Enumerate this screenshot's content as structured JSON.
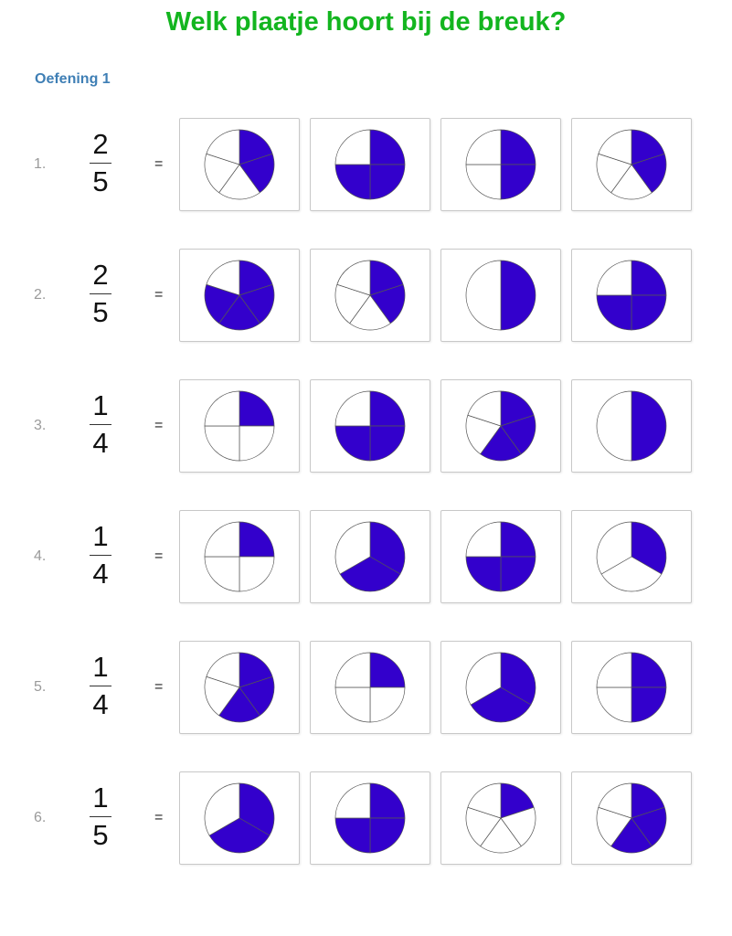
{
  "title": "Welk plaatje hoort bij de breuk?",
  "section": "Oefening 1",
  "equals_sign": "=",
  "colors": {
    "fill": "#3300cc",
    "title": "#13b51f",
    "section": "#3f7fb5"
  },
  "exercises": [
    {
      "label": "1.",
      "numerator": "2",
      "denominator": "5",
      "options": [
        {
          "parts": 5,
          "filled": 2
        },
        {
          "parts": 4,
          "filled": 3
        },
        {
          "parts": 4,
          "filled": 2
        },
        {
          "parts": 5,
          "filled": 2
        }
      ]
    },
    {
      "label": "2.",
      "numerator": "2",
      "denominator": "5",
      "options": [
        {
          "parts": 5,
          "filled": 4
        },
        {
          "parts": 5,
          "filled": 2
        },
        {
          "parts": 2,
          "filled": 1
        },
        {
          "parts": 4,
          "filled": 3
        }
      ]
    },
    {
      "label": "3.",
      "numerator": "1",
      "denominator": "4",
      "options": [
        {
          "parts": 4,
          "filled": 1
        },
        {
          "parts": 4,
          "filled": 3
        },
        {
          "parts": 5,
          "filled": 3
        },
        {
          "parts": 2,
          "filled": 1
        }
      ]
    },
    {
      "label": "4.",
      "numerator": "1",
      "denominator": "4",
      "options": [
        {
          "parts": 4,
          "filled": 1
        },
        {
          "parts": 3,
          "filled": 2
        },
        {
          "parts": 4,
          "filled": 3
        },
        {
          "parts": 3,
          "filled": 1
        }
      ]
    },
    {
      "label": "5.",
      "numerator": "1",
      "denominator": "4",
      "options": [
        {
          "parts": 5,
          "filled": 3
        },
        {
          "parts": 4,
          "filled": 1
        },
        {
          "parts": 3,
          "filled": 2
        },
        {
          "parts": 4,
          "filled": 2
        }
      ]
    },
    {
      "label": "6.",
      "numerator": "1",
      "denominator": "5",
      "options": [
        {
          "parts": 3,
          "filled": 2
        },
        {
          "parts": 4,
          "filled": 3
        },
        {
          "parts": 5,
          "filled": 1
        },
        {
          "parts": 5,
          "filled": 3
        }
      ]
    }
  ]
}
